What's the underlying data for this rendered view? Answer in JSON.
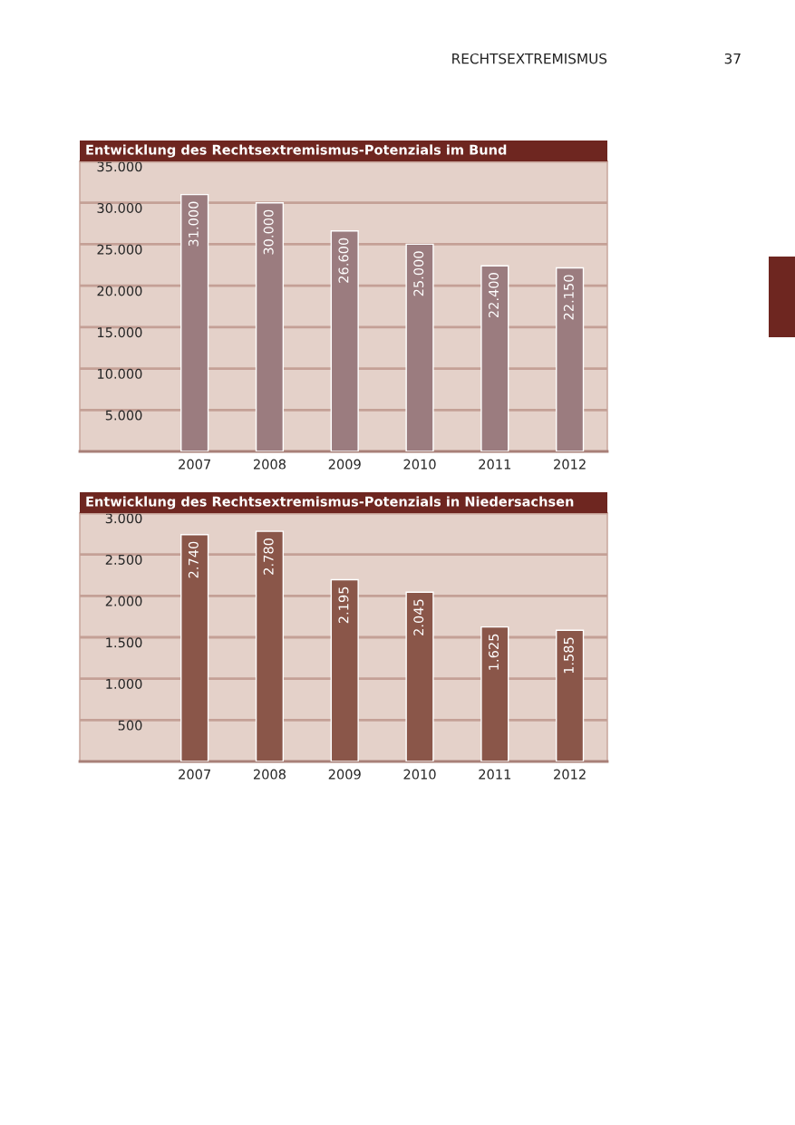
{
  "chart_data": [
    {
      "type": "bar",
      "title": "Entwicklung des Rechtsextremismus-Potenzials im Bund",
      "annotations": [
        "RECHTSEXTREMISMUS",
        "37"
      ],
      "categories": [
        "2007",
        "2008",
        "2009",
        "2010",
        "2011",
        "2012"
      ],
      "values": [
        31000,
        30000,
        26600,
        25000,
        22400,
        22150
      ],
      "value_labels": [
        "31.000",
        "30.000",
        "26.600",
        "25.000",
        "22.400",
        "22.150"
      ],
      "color": "#9b7c7f",
      "ylim": [
        0,
        35000
      ],
      "yticks": [
        {
          "value": 5000,
          "label": "5.000"
        },
        {
          "value": 10000,
          "label": "10.000"
        },
        {
          "value": 15000,
          "label": "15.000"
        },
        {
          "value": 20000,
          "label": "20.000"
        },
        {
          "value": 25000,
          "label": "25.000"
        },
        {
          "value": 30000,
          "label": "30.000"
        },
        {
          "value": 35000,
          "label": "35.000"
        }
      ],
      "grid": "y"
    },
    {
      "type": "bar",
      "title": "Entwicklung des Rechtsextremismus-Potenzials in Niedersachsen",
      "categories": [
        "2007",
        "2008",
        "2009",
        "2010",
        "2011",
        "2012"
      ],
      "values": [
        2740,
        2780,
        2195,
        2045,
        1625,
        1585
      ],
      "value_labels": [
        "2.740",
        "2.780",
        "2.195",
        "2.045",
        "1.625",
        "1.585"
      ],
      "color": "#8a5649",
      "ylim": [
        0,
        3000
      ],
      "yticks": [
        500,
        {
          "value": 1000,
          "label": "1.000"
        },
        {
          "value": 1500,
          "label": "1.500"
        },
        {
          "value": 2000,
          "label": "2.000"
        },
        {
          "value": 2500,
          "label": "2.500"
        },
        {
          "value": 3000,
          "label": "3.000"
        }
      ],
      "grid": "y"
    }
  ]
}
